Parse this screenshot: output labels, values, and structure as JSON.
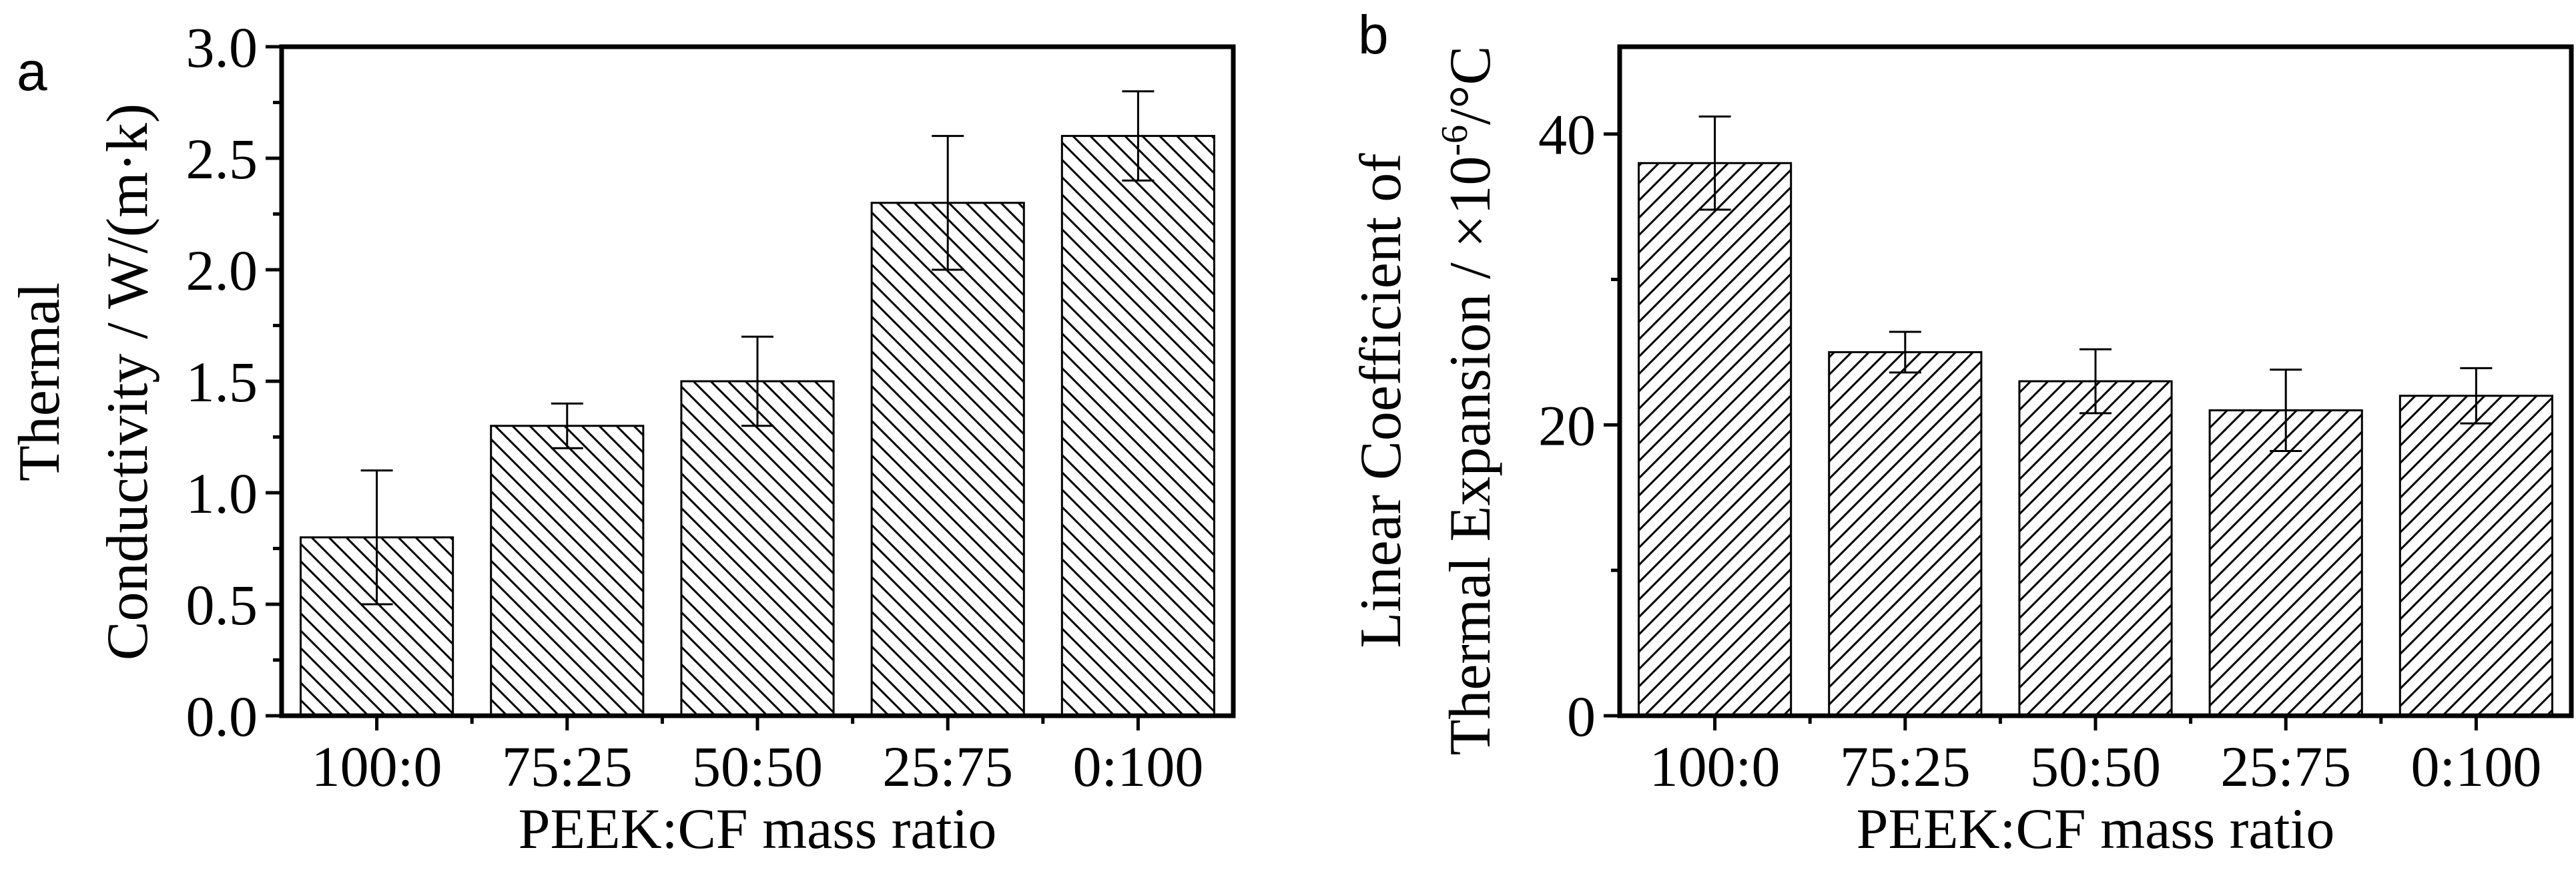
{
  "chart_data": [
    {
      "type": "bar",
      "panel_label": "a",
      "categories": [
        "100:0",
        "75:25",
        "50:50",
        "25:75",
        "0:100"
      ],
      "values": [
        0.8,
        1.3,
        1.5,
        2.3,
        2.6
      ],
      "errors": [
        0.3,
        0.1,
        0.2,
        0.3,
        0.2
      ],
      "xlabel": "PEEK:CF mass ratio",
      "ylabel_lines": [
        "Thermal",
        "Conductivity / W/(m·k)"
      ],
      "ylim": [
        0,
        3.0
      ],
      "yticks": [
        0.0,
        0.5,
        1.0,
        1.5,
        2.0,
        2.5,
        3.0
      ],
      "ytick_labels": [
        "0.0",
        "0.5",
        "1.0",
        "1.5",
        "2.0",
        "2.5",
        "3.0"
      ],
      "hatch": "backslash",
      "grid": false
    },
    {
      "type": "bar",
      "panel_label": "b",
      "categories": [
        "100:0",
        "75:25",
        "50:50",
        "25:75",
        "0:100"
      ],
      "values": [
        38,
        25,
        23,
        21,
        22
      ],
      "errors": [
        3.2,
        1.4,
        2.2,
        2.8,
        1.9
      ],
      "xlabel": "PEEK:CF mass ratio",
      "ylabel_lines": [
        "Linear Coefficient of",
        "Thermal Expansion / ×10",
        "-6",
        "/°C"
      ],
      "ylim": [
        0,
        46
      ],
      "yticks": [
        0,
        20,
        40
      ],
      "ytick_labels": [
        "0",
        "20",
        "40"
      ],
      "hatch": "slash",
      "grid": false
    }
  ]
}
